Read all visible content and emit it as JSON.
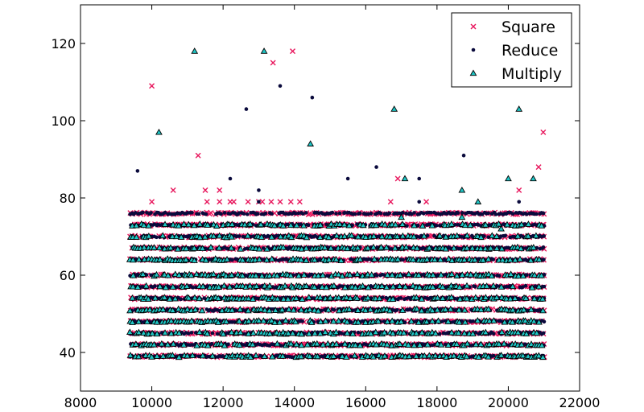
{
  "chart_data": {
    "type": "scatter",
    "title": "",
    "xlabel": "",
    "ylabel": "",
    "xlim": [
      8000,
      22000
    ],
    "ylim": [
      30,
      130
    ],
    "xticks": [
      8000,
      10000,
      12000,
      14000,
      16000,
      18000,
      20000,
      22000
    ],
    "yticks": [
      40,
      60,
      80,
      100,
      120
    ],
    "grid": false,
    "legend": {
      "placement": "top-right",
      "entries": [
        "Square",
        "Reduce",
        "Multiply"
      ]
    },
    "band_x_range": [
      9400,
      21000
    ],
    "series": [
      {
        "name": "Square",
        "marker": "x",
        "color": "#e8175d",
        "band_levels": [
          39,
          42,
          45,
          48,
          51,
          54,
          57,
          60,
          64,
          67,
          70,
          73,
          76
        ],
        "outliers": [
          [
            10000,
            109
          ],
          [
            10000,
            79
          ],
          [
            10600,
            82
          ],
          [
            11300,
            91
          ],
          [
            11500,
            82
          ],
          [
            11550,
            79
          ],
          [
            11900,
            82
          ],
          [
            11900,
            79
          ],
          [
            12200,
            79
          ],
          [
            12300,
            79
          ],
          [
            12700,
            79
          ],
          [
            13000,
            79
          ],
          [
            13100,
            79
          ],
          [
            13400,
            115
          ],
          [
            13350,
            79
          ],
          [
            13600,
            79
          ],
          [
            13950,
            118
          ],
          [
            13900,
            79
          ],
          [
            14150,
            79
          ],
          [
            16700,
            79
          ],
          [
            16900,
            85
          ],
          [
            17700,
            79
          ],
          [
            20300,
            82
          ],
          [
            20850,
            88
          ],
          [
            20980,
            97
          ]
        ]
      },
      {
        "name": "Reduce",
        "marker": "dot",
        "color": "#0a0a3c",
        "band_levels": [
          39,
          42,
          45,
          48,
          51,
          54,
          57,
          60,
          64,
          67,
          70,
          73,
          76
        ],
        "outliers": [
          [
            9600,
            87
          ],
          [
            12200,
            85
          ],
          [
            12650,
            103
          ],
          [
            13000,
            82
          ],
          [
            13000,
            79
          ],
          [
            13600,
            109
          ],
          [
            14500,
            106
          ],
          [
            15500,
            85
          ],
          [
            16300,
            88
          ],
          [
            17100,
            85
          ],
          [
            17500,
            85
          ],
          [
            17500,
            79
          ],
          [
            18750,
            91
          ],
          [
            20300,
            79
          ],
          [
            20700,
            76
          ]
        ]
      },
      {
        "name": "Multiply",
        "marker": "triangle",
        "color": "#1fc6c6",
        "band_levels": [
          39,
          42,
          45,
          48,
          51,
          54,
          57,
          60,
          64,
          67,
          70,
          73
        ],
        "outliers": [
          [
            10200,
            97
          ],
          [
            11200,
            118
          ],
          [
            13150,
            118
          ],
          [
            14450,
            94
          ],
          [
            16800,
            103
          ],
          [
            17100,
            85
          ],
          [
            18700,
            82
          ],
          [
            19150,
            79
          ],
          [
            20000,
            85
          ],
          [
            20300,
            103
          ],
          [
            20700,
            85
          ],
          [
            17000,
            75
          ],
          [
            18700,
            75
          ],
          [
            19800,
            72
          ]
        ]
      }
    ]
  }
}
